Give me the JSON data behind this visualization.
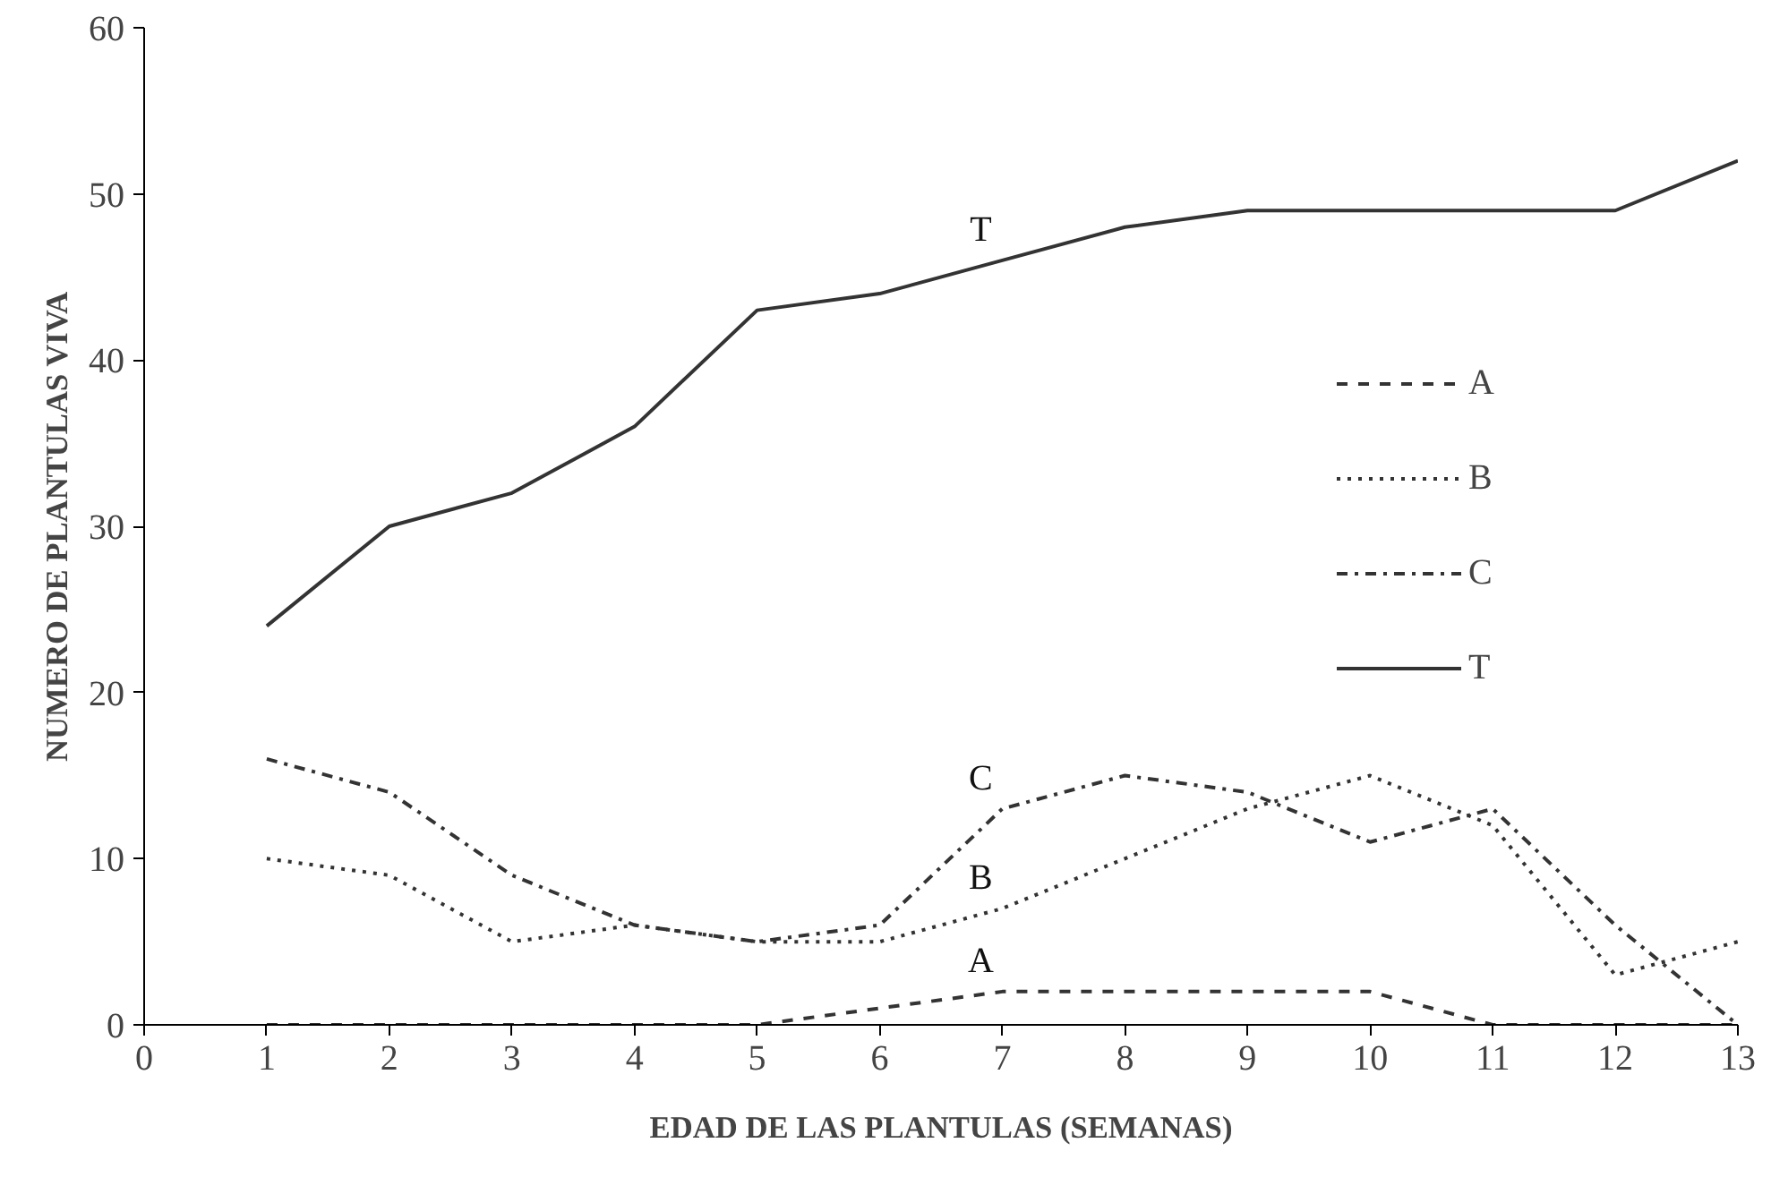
{
  "chart_data": {
    "type": "line",
    "xlabel": "EDAD DE LAS PLANTULAS (SEMANAS)",
    "ylabel": "NUMERO DE PLANTULAS VIVA",
    "x": [
      1,
      2,
      3,
      4,
      5,
      6,
      7,
      8,
      9,
      10,
      11,
      12,
      13
    ],
    "series": [
      {
        "name": "A",
        "color": "#333333",
        "line_style": "dashed",
        "values": [
          0,
          0,
          0,
          0,
          0,
          1,
          2,
          2,
          2,
          2,
          0,
          0,
          0
        ]
      },
      {
        "name": "B",
        "color": "#333333",
        "line_style": "dotted",
        "values": [
          10,
          9,
          5,
          6,
          5,
          5,
          7,
          10,
          13,
          15,
          12,
          3,
          5
        ]
      },
      {
        "name": "C",
        "color": "#333333",
        "line_style": "dashdot",
        "values": [
          16,
          14,
          9,
          6,
          5,
          6,
          13,
          15,
          14,
          11,
          13,
          6,
          0
        ]
      },
      {
        "name": "T",
        "color": "#333333",
        "line_style": "solid",
        "values": [
          24,
          30,
          32,
          36,
          43,
          44,
          46,
          48,
          49,
          49,
          49,
          49,
          52
        ]
      }
    ],
    "xlim": [
      0,
      13
    ],
    "xticks": [
      0,
      1,
      2,
      3,
      4,
      5,
      6,
      7,
      8,
      9,
      10,
      11,
      12,
      13
    ],
    "ylim": [
      0,
      60
    ],
    "yticks": [
      0,
      10,
      20,
      30,
      40,
      50,
      60
    ],
    "grid": false,
    "legend": "right",
    "marker": "none"
  }
}
